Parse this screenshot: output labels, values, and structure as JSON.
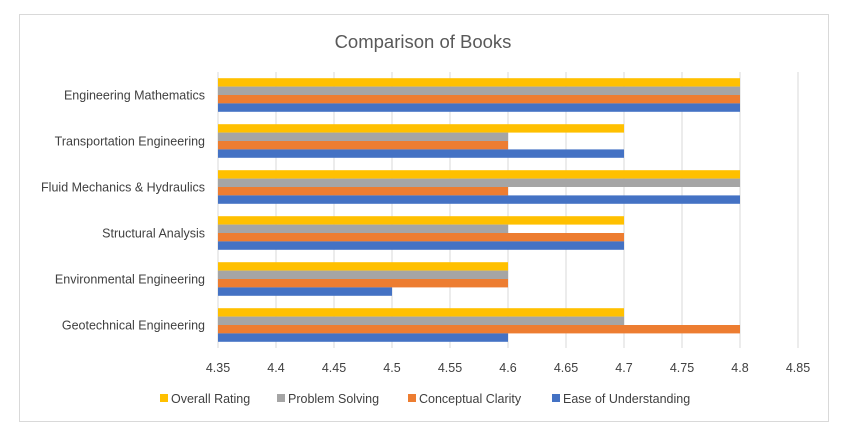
{
  "chart_data": {
    "type": "bar",
    "orientation": "horizontal",
    "title": "Comparison of Books",
    "categories": [
      "Engineering Mathematics",
      "Transportation Engineering",
      "Fluid Mechanics & Hydraulics",
      "Structural Analysis",
      "Environmental Engineering",
      "Geotechnical Engineering"
    ],
    "series": [
      {
        "name": "Overall Rating",
        "color": "#FFC000",
        "values": [
          4.8,
          4.7,
          4.8,
          4.7,
          4.6,
          4.7
        ]
      },
      {
        "name": "Problem Solving",
        "color": "#A5A5A5",
        "values": [
          4.8,
          4.6,
          4.8,
          4.6,
          4.6,
          4.7
        ]
      },
      {
        "name": "Conceptual Clarity",
        "color": "#ED7D31",
        "values": [
          4.8,
          4.6,
          4.6,
          4.7,
          4.6,
          4.8
        ]
      },
      {
        "name": "Ease of Understanding",
        "color": "#4472C4",
        "values": [
          4.8,
          4.7,
          4.8,
          4.7,
          4.5,
          4.6
        ]
      }
    ],
    "xlim": [
      4.35,
      4.85
    ],
    "xticks": [
      "4.35",
      "4.4",
      "4.45",
      "4.5",
      "4.55",
      "4.6",
      "4.65",
      "4.7",
      "4.75",
      "4.8",
      "4.85"
    ],
    "grid": true,
    "legend": "bottom"
  }
}
